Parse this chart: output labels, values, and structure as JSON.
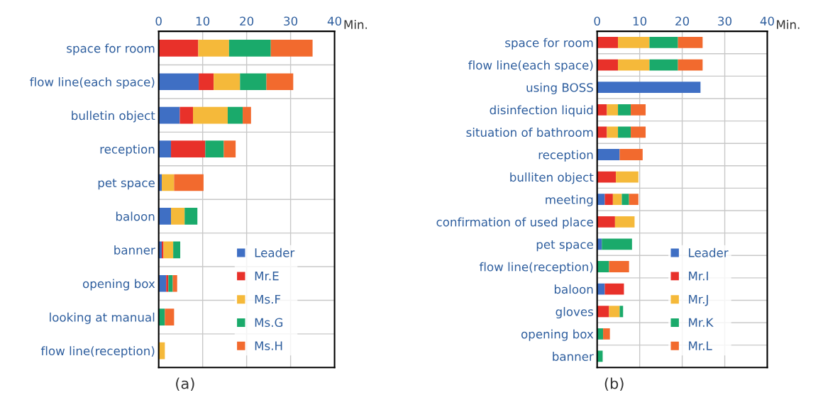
{
  "chart_data": [
    {
      "type": "bar",
      "orientation": "horizontal",
      "stacked": true,
      "title": "(a)",
      "xlabel": "Min.",
      "xlim": [
        0,
        40
      ],
      "xticks": [
        0,
        10,
        20,
        30,
        40
      ],
      "grid": true,
      "legend": "bottom right",
      "categories": [
        "space for room",
        "flow line(each space)",
        "bulletin object",
        "reception",
        "pet space",
        "baloon",
        "banner",
        "opening box",
        "looking at manual",
        "flow line(reception)"
      ],
      "series": [
        {
          "name": "Leader",
          "color": "#3f6fc4",
          "values": [
            0,
            9.1,
            4.8,
            2.8,
            0.7,
            2.8,
            0.7,
            1.7,
            0,
            0
          ]
        },
        {
          "name": "Mr.E",
          "color": "#e8312a",
          "values": [
            9.0,
            3.4,
            3.0,
            7.8,
            0,
            0,
            0.4,
            0.5,
            0,
            0
          ]
        },
        {
          "name": "Ms.F",
          "color": "#f5b93a",
          "values": [
            7.0,
            6.0,
            7.9,
            0,
            2.8,
            3.1,
            2.2,
            0,
            0,
            1.4
          ]
        },
        {
          "name": "Ms.G",
          "color": "#1aaa6b",
          "values": [
            9.5,
            6.0,
            3.4,
            4.2,
            0,
            2.9,
            1.6,
            1.0,
            1.4,
            0
          ]
        },
        {
          "name": "Ms.H",
          "color": "#f26a2e",
          "values": [
            9.5,
            6.1,
            1.9,
            2.7,
            6.7,
            0,
            0,
            1.0,
            2.1,
            0
          ]
        }
      ]
    },
    {
      "type": "bar",
      "orientation": "horizontal",
      "stacked": true,
      "title": "(b)",
      "xlabel": "Min.",
      "xlim": [
        0,
        40
      ],
      "xticks": [
        0,
        10,
        20,
        30,
        40
      ],
      "grid": true,
      "legend": "bottom right",
      "categories": [
        "space for room",
        "flow line(each space)",
        "using BOSS",
        "disinfection liquid",
        "situation of bathroom",
        "reception",
        "bulliten object",
        "meeting",
        "confirmation of used place",
        "pet space",
        "flow line(reception)",
        "baloon",
        "gloves",
        "opening box",
        "banner"
      ],
      "series": [
        {
          "name": "Leader",
          "color": "#3f6fc4",
          "values": [
            0,
            0,
            24.3,
            0,
            0,
            5.3,
            0,
            1.8,
            0,
            1.1,
            0,
            1.8,
            0,
            0,
            0
          ]
        },
        {
          "name": "Mr.I",
          "color": "#e8312a",
          "values": [
            4.9,
            4.9,
            0,
            2.3,
            2.3,
            0,
            4.4,
            1.9,
            4.2,
            0,
            0,
            4.5,
            2.8,
            0,
            0
          ]
        },
        {
          "name": "Mr.J",
          "color": "#f5b93a",
          "values": [
            7.4,
            7.4,
            0,
            2.6,
            2.6,
            0,
            5.3,
            2.1,
            4.6,
            0,
            0,
            0,
            2.5,
            0,
            0
          ]
        },
        {
          "name": "Mr.K",
          "color": "#1aaa6b",
          "values": [
            6.7,
            6.7,
            0,
            3.0,
            3.0,
            0,
            0,
            1.7,
            0,
            7.1,
            2.8,
            0,
            0.8,
            1.4,
            1.3
          ]
        },
        {
          "name": "Mr.L",
          "color": "#f26a2e",
          "values": [
            5.8,
            5.8,
            0,
            3.5,
            3.5,
            5.4,
            0,
            2.2,
            0,
            0,
            4.7,
            0,
            0,
            1.6,
            0
          ]
        }
      ]
    }
  ]
}
